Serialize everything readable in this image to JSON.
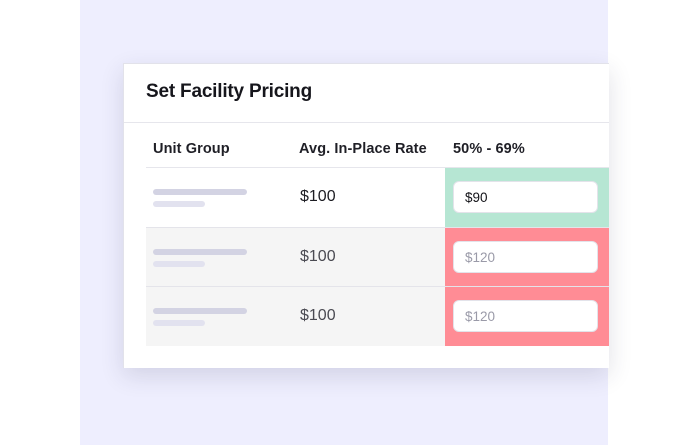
{
  "card": {
    "title": "Set Facility Pricing"
  },
  "table": {
    "columns": [
      "Unit Group",
      "Avg. In-Place Rate",
      "50% - 69%"
    ],
    "rows": [
      {
        "rate": "$100",
        "price_value": "$90",
        "price_placeholder": "",
        "status": "green"
      },
      {
        "rate": "$100",
        "price_value": "",
        "price_placeholder": "$120",
        "status": "red"
      },
      {
        "rate": "$100",
        "price_value": "",
        "price_placeholder": "$120",
        "status": "red"
      }
    ]
  },
  "colors": {
    "background": "#eeeefe",
    "cell_green": "#b6e6d3",
    "cell_red": "#ff8c95",
    "row_alt": "#f5f5f5"
  }
}
